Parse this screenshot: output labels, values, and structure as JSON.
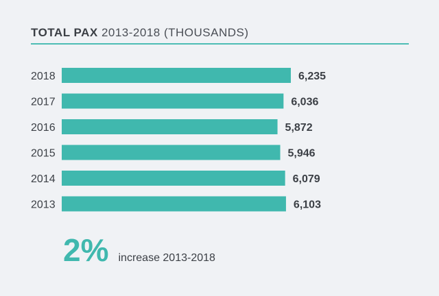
{
  "header": {
    "title_bold": "TOTAL PAX",
    "title_light": "2013-2018 (THOUSANDS)"
  },
  "chart_data": {
    "type": "bar",
    "orientation": "horizontal",
    "categories": [
      "2018",
      "2017",
      "2016",
      "2015",
      "2014",
      "2013"
    ],
    "values": [
      6235,
      6036,
      5872,
      5946,
      6079,
      6103
    ],
    "value_labels": [
      "6,235",
      "6,036",
      "5,872",
      "5,946",
      "6,079",
      "6,103"
    ],
    "title": "TOTAL PAX 2013-2018 (THOUSANDS)",
    "xlabel": "",
    "ylabel": "",
    "grid": false,
    "bar_color": "#40b8ae"
  },
  "summary": {
    "percent": "2%",
    "text": "increase 2013-2018"
  },
  "colors": {
    "accent": "#40b8ae",
    "background": "#f0f2f5",
    "text": "#3b3f45"
  }
}
